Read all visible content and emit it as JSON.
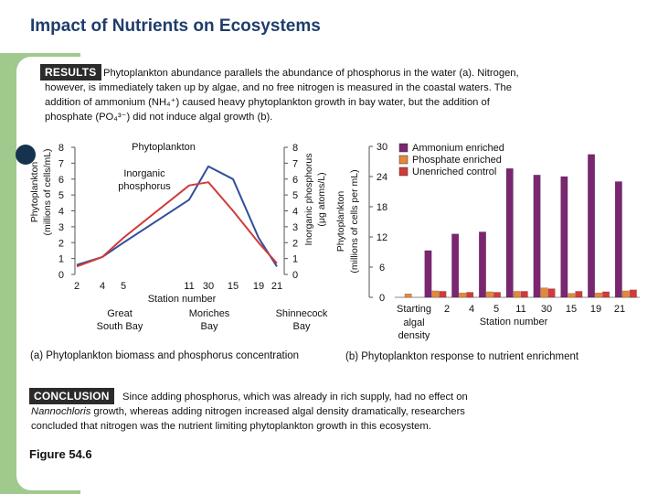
{
  "page": {
    "title": "Impact of Nutrients on Ecosystems",
    "figure_label": "Figure 54.6"
  },
  "results": {
    "tag": "RESULTS",
    "line1": "Phytoplankton abundance parallels the abundance of phosphorus in the water (a). Nitrogen,",
    "line2": "however, is immediately taken up by algae, and no free nitrogen is measured in the coastal waters. The",
    "line3": "addition of ammonium (NH₄⁺) caused heavy phytoplankton growth in bay water, but the addition of",
    "line4": "phosphate (PO₄³⁻) did not induce algal growth (b)."
  },
  "conclusion": {
    "tag": "CONCLUSION",
    "line1": "Since adding phosphorus, which was already in rich supply, had no effect on",
    "line2": "Nannochloris growth, whereas adding nitrogen increased algal density dramatically, researchers",
    "line3": "concluded that nitrogen was the nutrient limiting phytoplankton growth in this ecosystem."
  },
  "colors": {
    "side_band": "#9fc98d",
    "title": "#1f3d6b",
    "ammonium": "#7a2670",
    "phosphate": "#e4883a",
    "unenriched": "#d13b3b",
    "line": "#2f4f9e"
  },
  "chart_data": [
    {
      "type": "line",
      "caption": "(a) Phytoplankton biomass and phosphorus concentration",
      "xlabel": "Station number",
      "ylabel_left": "Phytoplankton (millions of cells/mL)",
      "ylabel_right": "Inorganic phosphorus (μg atoms/L)",
      "x_ticks": [
        "2",
        "4",
        "5",
        "11",
        "30",
        "15",
        "19",
        "21"
      ],
      "y_ticks": [
        "0",
        "1",
        "2",
        "3",
        "4",
        "5",
        "6",
        "7",
        "8"
      ],
      "ylim": [
        0,
        8
      ],
      "location_labels": [
        {
          "text": "Great South Bay",
          "line1": "Great",
          "line2": "South Bay"
        },
        {
          "text": "Moriches Bay",
          "line1": "Moriches",
          "line2": "Bay"
        },
        {
          "text": "Shinnecock Bay",
          "line1": "Shinnecock",
          "line2": "Bay"
        }
      ],
      "series": [
        {
          "name": "Phytoplankton",
          "color": "#2f4f9e",
          "values": [
            0.6,
            1.1,
            2.0,
            4.7,
            6.8,
            6.0,
            2.3,
            0.5
          ]
        },
        {
          "name": "Inorganic phosphorus",
          "color": "#d13b3b",
          "values": [
            0.5,
            1.1,
            2.3,
            5.6,
            5.8,
            4.0,
            2.0,
            0.7
          ]
        }
      ]
    },
    {
      "type": "bar",
      "caption": "(b) Phytoplankton response to nutrient enrichment",
      "xlabel": "Station number",
      "ylabel": "Phytoplankton (millions of cells per mL)",
      "y_ticks": [
        "0",
        "6",
        "12",
        "18",
        "24",
        "30"
      ],
      "ylim": [
        0,
        30
      ],
      "categories": [
        "Starting algal density",
        "2",
        "4",
        "5",
        "11",
        "30",
        "15",
        "19",
        "21"
      ],
      "category_labels": [
        {
          "line1": "Starting",
          "line2": "algal",
          "line3": "density"
        },
        {
          "line1": "2"
        },
        {
          "line1": "4"
        },
        {
          "line1": "5"
        },
        {
          "line1": "11"
        },
        {
          "line1": "30"
        },
        {
          "line1": "15"
        },
        {
          "line1": "19"
        },
        {
          "line1": "21"
        }
      ],
      "series": [
        {
          "name": "Ammonium enriched",
          "color": "#7a2670",
          "values": [
            0,
            9.3,
            12.6,
            13.0,
            25.6,
            24.3,
            24.0,
            28.4,
            23.0
          ]
        },
        {
          "name": "Phosphate enriched",
          "color": "#e4883a",
          "values": [
            0.7,
            1.3,
            0.9,
            1.1,
            1.2,
            1.9,
            0.8,
            0.9,
            1.3
          ]
        },
        {
          "name": "Unenriched control",
          "color": "#d13b3b",
          "values": [
            0,
            1.2,
            1.0,
            1.0,
            1.2,
            1.7,
            1.2,
            1.1,
            1.5
          ]
        }
      ]
    }
  ]
}
